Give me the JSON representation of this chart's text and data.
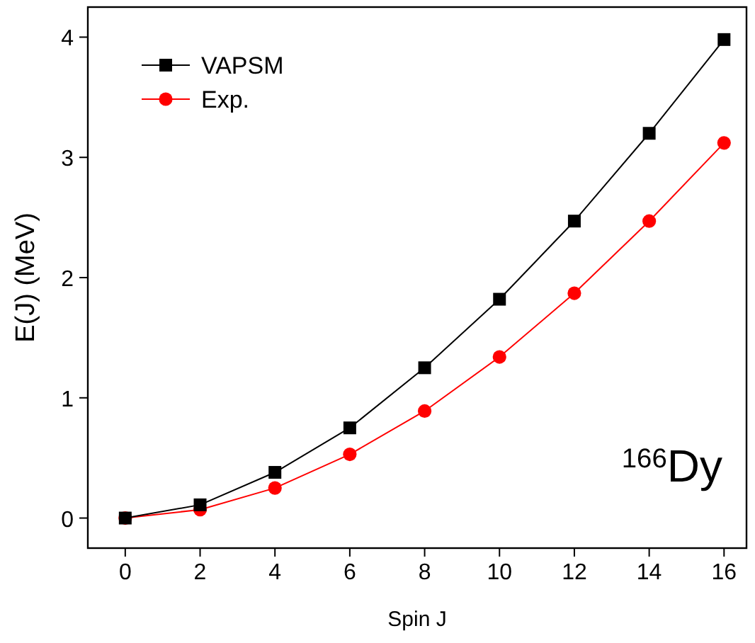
{
  "chart_data": {
    "type": "line",
    "xlabel": "Spin J",
    "ylabel": "E(J) (MeV)",
    "x": [
      0,
      2,
      4,
      6,
      8,
      10,
      12,
      14,
      16
    ],
    "series": [
      {
        "name": "VAPSM",
        "color": "#000000",
        "marker": "square",
        "values": [
          0,
          0.11,
          0.38,
          0.75,
          1.25,
          1.82,
          2.47,
          3.2,
          3.98
        ]
      },
      {
        "name": "Exp.",
        "color": "#ff0000",
        "marker": "circle",
        "values": [
          0,
          0.07,
          0.25,
          0.53,
          0.89,
          1.34,
          1.87,
          2.47,
          3.12
        ]
      }
    ],
    "xlim": [
      -1,
      16.6
    ],
    "xticks": [
      0,
      2,
      4,
      6,
      8,
      10,
      12,
      14,
      16
    ],
    "ylim": [
      -0.25,
      4.25
    ],
    "yticks": [
      0,
      1,
      2,
      3,
      4
    ],
    "legend": "top left",
    "grid": false,
    "line_style": "solid",
    "annotations": [
      "$^{166}$Dy"
    ]
  }
}
